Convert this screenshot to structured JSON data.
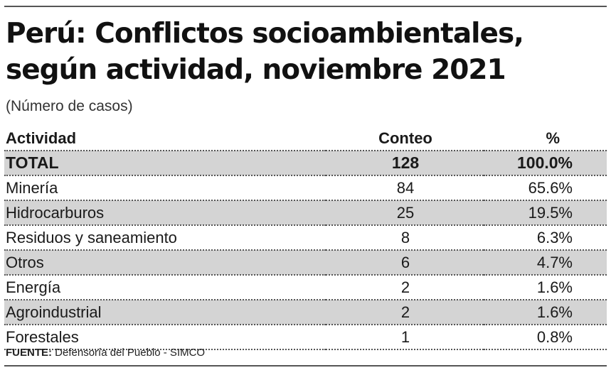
{
  "title_line1": "Perú: Conflictos socioambientales,",
  "title_line2": "según actividad, noviembre 2021",
  "subtitle": "(Número de casos)",
  "source_label": "FUENTE:",
  "source_text": "Defensoría del Pueblo - SIMCO",
  "chart_data": {
    "type": "table",
    "columns": [
      "Actividad",
      "Conteo",
      "%"
    ],
    "total": {
      "label": "TOTAL",
      "count": "128",
      "pct": "100.0%"
    },
    "rows": [
      {
        "label": "Minería",
        "count": "84",
        "pct": "65.6%"
      },
      {
        "label": "Hidrocarburos",
        "count": "25",
        "pct": "19.5%"
      },
      {
        "label": "Residuos y saneamiento",
        "count": "8",
        "pct": "6.3%"
      },
      {
        "label": "Otros",
        "count": "6",
        "pct": "4.7%"
      },
      {
        "label": "Energía",
        "count": "2",
        "pct": "1.6%"
      },
      {
        "label": "Agroindustrial",
        "count": "2",
        "pct": "1.6%"
      },
      {
        "label": "Forestales",
        "count": "1",
        "pct": "0.8%"
      }
    ]
  }
}
